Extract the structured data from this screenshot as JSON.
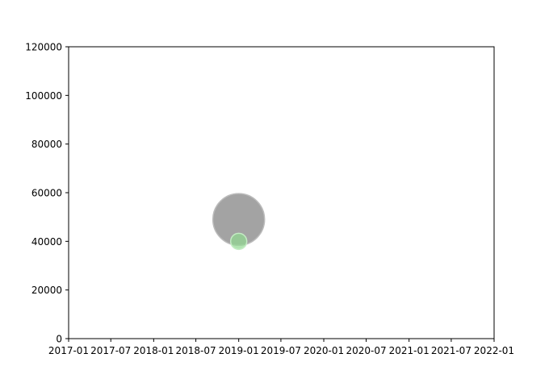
{
  "chart_data": {
    "type": "scatter",
    "title": "",
    "xlabel": "",
    "ylabel": "",
    "xlim": [
      "2017-01-01",
      "2022-01-01"
    ],
    "ylim": [
      0,
      120000
    ],
    "grid": false,
    "x_tick_labels": [
      "2017-01",
      "2017-07",
      "2018-01",
      "2018-07",
      "2019-01",
      "2019-07",
      "2020-01",
      "2020-07",
      "2021-01",
      "2021-07",
      "2022-01"
    ],
    "x_ticks": [
      "2017-01-01",
      "2017-07-01",
      "2018-01-01",
      "2018-07-01",
      "2019-01-01",
      "2019-07-01",
      "2020-01-01",
      "2020-07-01",
      "2021-01-01",
      "2021-07-01",
      "2022-01-01"
    ],
    "y_tick_labels": [
      "0",
      "20000",
      "40000",
      "60000",
      "80000",
      "100000",
      "120000"
    ],
    "y_ticks": [
      0,
      20000,
      40000,
      60000,
      80000,
      100000,
      120000
    ],
    "points": [
      {
        "x": "2019-01-01",
        "y": 49000,
        "size": 32,
        "color": "#999999",
        "edge_color": "#bbbbbb",
        "opacity": 0.9
      },
      {
        "x": "2019-01-01",
        "y": 40000,
        "size": 10,
        "color": "#90d890",
        "edge_color": "#c4ecc4",
        "opacity": 0.7
      }
    ]
  }
}
